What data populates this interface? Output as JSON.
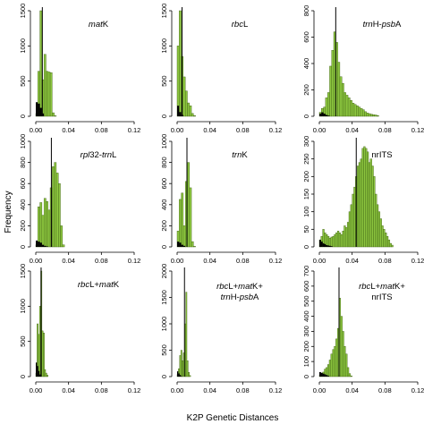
{
  "figure": {
    "ylabel": "Frequency",
    "xlabel": "K2P Genetic Distances",
    "bar_color": "#8CC63F",
    "bar_edge_color": "#3A5A10",
    "intra_color": "#000000",
    "xlim": [
      0,
      0.12
    ],
    "xticks": [
      "0.00",
      "0.04",
      "0.08",
      "0.12"
    ]
  },
  "chart_data": [
    {
      "type": "bar",
      "panel_label": "matK",
      "label_parts": [
        {
          "text": "mat",
          "italic": true
        },
        {
          "text": "K",
          "italic": false
        }
      ],
      "bin_width": 0.0025,
      "ylim": [
        0,
        1500
      ],
      "yticks": [
        0,
        500,
        1000,
        1500
      ],
      "threshold": 0.008,
      "values": [
        40,
        640,
        1500,
        520,
        880,
        640,
        630,
        620,
        50,
        8
      ],
      "intra_values": [
        200,
        180,
        120,
        40
      ]
    },
    {
      "type": "bar",
      "panel_label": "rbcL",
      "label_parts": [
        {
          "text": "rbc",
          "italic": true
        },
        {
          "text": "L",
          "italic": false
        }
      ],
      "bin_width": 0.0025,
      "ylim": [
        0,
        1500
      ],
      "yticks": [
        0,
        500,
        1000,
        1500
      ],
      "threshold": 0.006,
      "values": [
        1000,
        1500,
        850,
        560,
        360,
        190,
        150,
        40,
        10
      ],
      "intra_values": [
        150,
        60,
        20
      ]
    },
    {
      "type": "bar",
      "panel_label": "trnH-psbA",
      "label_parts": [
        {
          "text": "trn",
          "italic": true
        },
        {
          "text": "H-",
          "italic": false
        },
        {
          "text": "psb",
          "italic": true
        },
        {
          "text": "A",
          "italic": false
        }
      ],
      "bin_width": 0.0025,
      "ylim": [
        0,
        800
      ],
      "yticks": [
        0,
        200,
        400,
        600,
        800
      ],
      "threshold": 0.02,
      "values": [
        30,
        60,
        70,
        140,
        180,
        380,
        500,
        640,
        560,
        410,
        300,
        250,
        180,
        160,
        140,
        120,
        100,
        90,
        80,
        70,
        60,
        50,
        35,
        25,
        20,
        15,
        12,
        10,
        6
      ],
      "intra_values": [
        20,
        30,
        20,
        10,
        5
      ]
    },
    {
      "type": "bar",
      "panel_label": "rpl32-trnL",
      "label_parts": [
        {
          "text": "rpl",
          "italic": true
        },
        {
          "text": "32-",
          "italic": false
        },
        {
          "text": "trn",
          "italic": true
        },
        {
          "text": "L",
          "italic": false
        }
      ],
      "bin_width": 0.0025,
      "ylim": [
        0,
        1000
      ],
      "yticks": [
        0,
        200,
        400,
        600,
        800,
        1000
      ],
      "threshold": 0.019,
      "values": [
        20,
        380,
        420,
        300,
        460,
        430,
        350,
        560,
        760,
        800,
        700,
        600,
        200,
        20
      ],
      "intra_values": [
        60,
        50,
        40,
        20,
        10,
        5
      ]
    },
    {
      "type": "bar",
      "panel_label": "trnK",
      "label_parts": [
        {
          "text": "trn",
          "italic": true
        },
        {
          "text": "K",
          "italic": false
        }
      ],
      "bin_width": 0.0025,
      "ylim": [
        0,
        1000
      ],
      "yticks": [
        0,
        200,
        400,
        600,
        800,
        1000
      ],
      "threshold": 0.012,
      "values": [
        150,
        450,
        510,
        200,
        620,
        800,
        560,
        50,
        5
      ],
      "intra_values": [
        50,
        40,
        20,
        10
      ]
    },
    {
      "type": "bar",
      "panel_label": "nrITS",
      "label_parts": [
        {
          "text": "nrITS",
          "italic": false
        }
      ],
      "bin_width": 0.002,
      "ylim": [
        0,
        300
      ],
      "yticks": [
        0,
        50,
        100,
        150,
        200,
        250,
        300
      ],
      "threshold": 0.045,
      "values": [
        20,
        30,
        50,
        40,
        35,
        30,
        25,
        28,
        30,
        35,
        40,
        45,
        40,
        35,
        45,
        60,
        55,
        70,
        100,
        120,
        150,
        170,
        200,
        230,
        240,
        250,
        280,
        285,
        280,
        270,
        240,
        250,
        230,
        200,
        150,
        120,
        100,
        80,
        60,
        50,
        40,
        30,
        20,
        10,
        5
      ],
      "intra_values": [
        20,
        15,
        10,
        8,
        5,
        4,
        3,
        2
      ]
    },
    {
      "type": "bar",
      "panel_label": "rbcL+matK",
      "label_parts": [
        {
          "text": "rbc",
          "italic": true
        },
        {
          "text": "L+",
          "italic": false
        },
        {
          "text": "mat",
          "italic": true
        },
        {
          "text": "K",
          "italic": false
        }
      ],
      "bin_width": 0.0015,
      "ylim": [
        0,
        1500
      ],
      "yticks": [
        0,
        500,
        1000,
        1500
      ],
      "threshold": 0.0065,
      "values": [
        50,
        750,
        600,
        1000,
        1500,
        650,
        620,
        100,
        50,
        20
      ],
      "intra_values": [
        200,
        150,
        80,
        30
      ]
    },
    {
      "type": "bar",
      "panel_label": "rbcL+matK+ trnH-psbA",
      "label_parts": [
        {
          "text": "rbc",
          "italic": true
        },
        {
          "text": "L+",
          "italic": false
        },
        {
          "text": "mat",
          "italic": true
        },
        {
          "text": "K+",
          "italic": false
        }
      ],
      "label_parts_line2": [
        {
          "text": "trn",
          "italic": true
        },
        {
          "text": "H-",
          "italic": false
        },
        {
          "text": "psb",
          "italic": true
        },
        {
          "text": "A",
          "italic": false
        }
      ],
      "bin_width": 0.0015,
      "ylim": [
        0,
        2000
      ],
      "yticks": [
        0,
        500,
        1000,
        1500,
        2000
      ],
      "threshold": 0.009,
      "values": [
        40,
        150,
        400,
        500,
        300,
        450,
        1000,
        1600,
        300,
        80,
        20
      ],
      "intra_values": [
        100,
        60,
        30,
        10
      ]
    },
    {
      "type": "bar",
      "panel_label": "rbcL+matK+ nrITS",
      "label_parts": [
        {
          "text": "rbc",
          "italic": true
        },
        {
          "text": "L+",
          "italic": false
        },
        {
          "text": "mat",
          "italic": true
        },
        {
          "text": "K+",
          "italic": false
        }
      ],
      "label_parts_line2": [
        {
          "text": "nrITS",
          "italic": false
        }
      ],
      "bin_width": 0.002,
      "ylim": [
        0,
        700
      ],
      "yticks": [
        0,
        100,
        200,
        300,
        400,
        500,
        600,
        700
      ],
      "threshold": 0.024,
      "values": [
        10,
        20,
        30,
        50,
        60,
        80,
        110,
        150,
        180,
        200,
        250,
        320,
        520,
        400,
        300,
        200,
        150,
        60,
        20,
        5
      ],
      "intra_values": [
        30,
        25,
        20,
        15,
        10,
        5
      ]
    }
  ]
}
